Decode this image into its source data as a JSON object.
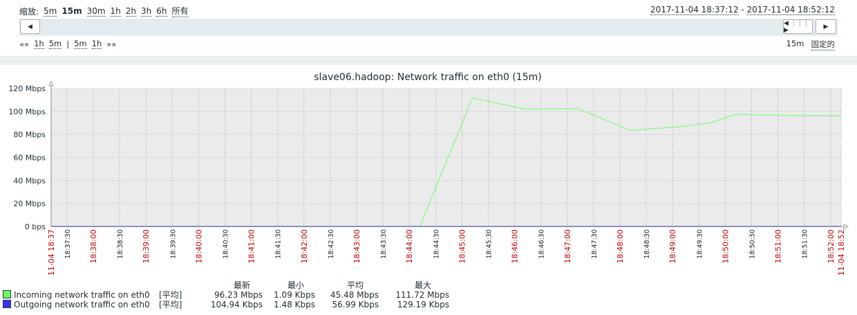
{
  "header": {
    "zoom_label": "缩放:",
    "zoom_options": [
      "5m",
      "15m",
      "30m",
      "1h",
      "2h",
      "3h",
      "6h",
      "所有"
    ],
    "zoom_selected": "15m",
    "time_from": "2017-11-04 18:37:12",
    "time_sep": " - ",
    "time_to": "2017-11-04 18:52:12",
    "nav_left_far": "««",
    "nav_back": [
      "1h",
      "5m"
    ],
    "nav_sep": "|",
    "nav_fwd": [
      "5m",
      "1h"
    ],
    "nav_right_far": "»»",
    "period": "15m",
    "fixed_label": "固定的"
  },
  "colors": {
    "incoming": "#66ff66",
    "outgoing": "#3333ff",
    "major_tick": "#c00000",
    "minor_tick": "#222222"
  },
  "chart_data": {
    "type": "line",
    "title": "slave06.hadoop: Network traffic on eth0 (15m)",
    "ylim": [
      0,
      120
    ],
    "y_ticks": [
      "0 bps",
      "20 Mbps",
      "40 Mbps",
      "60 Mbps",
      "80 Mbps",
      "100 Mbps",
      "120 Mbps"
    ],
    "x_range": [
      "18:37:12",
      "18:52:12"
    ],
    "x_ticks": [
      {
        "t": "18:37:12",
        "label": "11-04 18:37",
        "major": true
      },
      {
        "t": "18:37:30",
        "label": "18:37:30",
        "major": false
      },
      {
        "t": "18:38:00",
        "label": "18:38:00",
        "major": true
      },
      {
        "t": "18:38:30",
        "label": "18:38:30",
        "major": false
      },
      {
        "t": "18:39:00",
        "label": "18:39:00",
        "major": true
      },
      {
        "t": "18:39:30",
        "label": "18:39:30",
        "major": false
      },
      {
        "t": "18:40:00",
        "label": "18:40:00",
        "major": true
      },
      {
        "t": "18:40:30",
        "label": "18:40:30",
        "major": false
      },
      {
        "t": "18:41:00",
        "label": "18:41:00",
        "major": true
      },
      {
        "t": "18:41:30",
        "label": "18:41:30",
        "major": false
      },
      {
        "t": "18:42:00",
        "label": "18:42:00",
        "major": true
      },
      {
        "t": "18:42:30",
        "label": "18:42:30",
        "major": false
      },
      {
        "t": "18:43:00",
        "label": "18:43:00",
        "major": true
      },
      {
        "t": "18:43:30",
        "label": "18:43:30",
        "major": false
      },
      {
        "t": "18:44:00",
        "label": "18:44:00",
        "major": true
      },
      {
        "t": "18:44:30",
        "label": "18:44:30",
        "major": false
      },
      {
        "t": "18:45:00",
        "label": "18:45:00",
        "major": true
      },
      {
        "t": "18:45:30",
        "label": "18:45:30",
        "major": false
      },
      {
        "t": "18:46:00",
        "label": "18:46:00",
        "major": true
      },
      {
        "t": "18:46:30",
        "label": "18:46:30",
        "major": false
      },
      {
        "t": "18:47:00",
        "label": "18:47:00",
        "major": true
      },
      {
        "t": "18:47:30",
        "label": "18:47:30",
        "major": false
      },
      {
        "t": "18:48:00",
        "label": "18:48:00",
        "major": true
      },
      {
        "t": "18:48:30",
        "label": "18:48:30",
        "major": false
      },
      {
        "t": "18:49:00",
        "label": "18:49:00",
        "major": true
      },
      {
        "t": "18:49:30",
        "label": "18:49:30",
        "major": false
      },
      {
        "t": "18:50:00",
        "label": "18:50:00",
        "major": true
      },
      {
        "t": "18:50:30",
        "label": "18:50:30",
        "major": false
      },
      {
        "t": "18:51:00",
        "label": "18:51:00",
        "major": true
      },
      {
        "t": "18:51:30",
        "label": "18:51:30",
        "major": false
      },
      {
        "t": "18:52:00",
        "label": "18:52:00",
        "major": true
      },
      {
        "t": "18:52:12",
        "label": "11-04 18:52",
        "major": true
      }
    ],
    "series": [
      {
        "name": "Incoming network traffic on eth0",
        "points": [
          [
            "18:44:12",
            0
          ],
          [
            "18:45:12",
            111.7
          ],
          [
            "18:46:12",
            102
          ],
          [
            "18:47:12",
            102.5
          ],
          [
            "18:48:12",
            83.5
          ],
          [
            "18:49:12",
            87
          ],
          [
            "18:49:42",
            90
          ],
          [
            "18:50:12",
            97.5
          ],
          [
            "18:51:12",
            96.5
          ],
          [
            "18:52:12",
            96.2
          ]
        ]
      },
      {
        "name": "Outgoing network traffic on eth0",
        "points": [
          [
            "18:37:12",
            0.1
          ],
          [
            "18:52:12",
            0.1
          ]
        ]
      }
    ]
  },
  "legend": {
    "headers": [
      "最新",
      "最小",
      "平均",
      "最大"
    ],
    "rows": [
      {
        "name": "Incoming network traffic on eth0",
        "func": "[平均]",
        "last": "96.23 Mbps",
        "min": "1.09 Kbps",
        "avg": "45.48 Mbps",
        "max": "111.72 Mbps"
      },
      {
        "name": "Outgoing network traffic on eth0",
        "func": "[平均]",
        "last": "104.94 Kbps",
        "min": "1.48 Kbps",
        "avg": "56.99 Kbps",
        "max": "129.19 Kbps"
      }
    ]
  }
}
